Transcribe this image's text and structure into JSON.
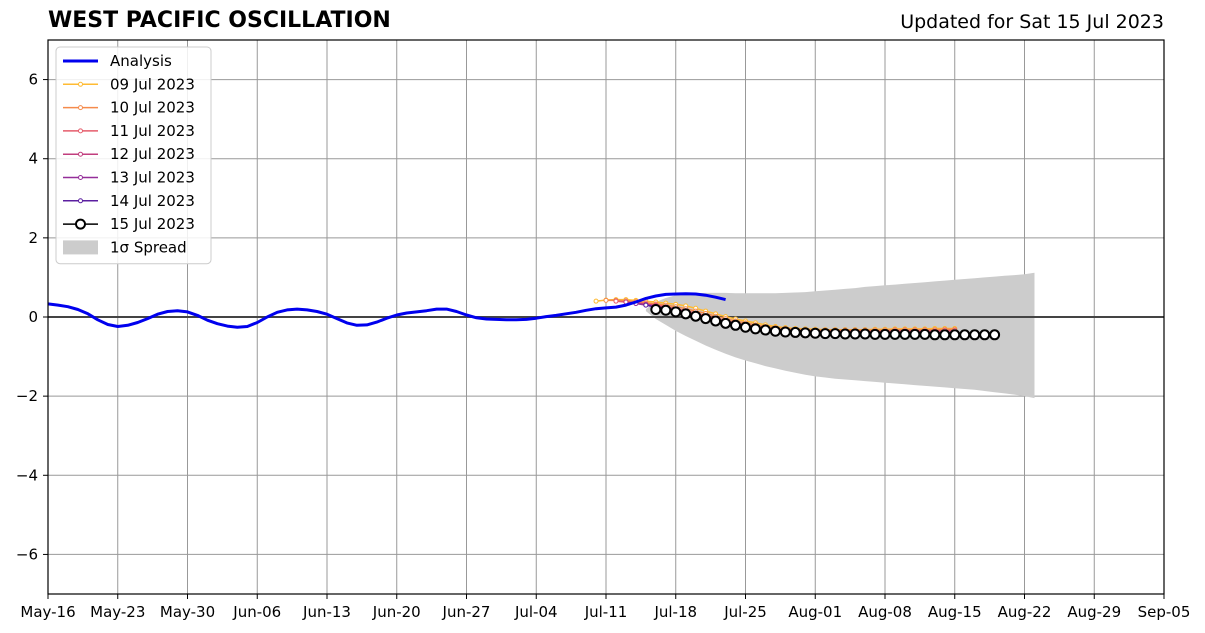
{
  "chart_data": {
    "type": "line",
    "title": "WEST PACIFIC OSCILLATION",
    "subtitle": "Updated for Sat 15 Jul 2023",
    "xlabel": "",
    "ylabel": "",
    "x_range": [
      "2023-05-16",
      "2023-09-05"
    ],
    "ylim": [
      -7,
      7
    ],
    "x_ticks": [
      "May-16",
      "May-23",
      "May-30",
      "Jun-06",
      "Jun-13",
      "Jun-20",
      "Jun-27",
      "Jul-04",
      "Jul-11",
      "Jul-18",
      "Jul-25",
      "Aug-01",
      "Aug-08",
      "Aug-15",
      "Aug-22",
      "Aug-29",
      "Sep-05"
    ],
    "y_ticks": [
      6,
      4,
      2,
      0,
      -2,
      -4,
      -6
    ],
    "y_tick_labels": [
      "6",
      "4",
      "2",
      "0",
      "−2",
      "−4",
      "−6"
    ],
    "grid": true,
    "legend_position": "top-left",
    "analysis": {
      "name": "Analysis",
      "color": "#0000ee",
      "start": "2023-05-16",
      "values": [
        0.33,
        0.3,
        0.26,
        0.19,
        0.08,
        -0.07,
        -0.19,
        -0.24,
        -0.21,
        -0.14,
        -0.04,
        0.07,
        0.14,
        0.16,
        0.13,
        0.04,
        -0.08,
        -0.17,
        -0.23,
        -0.26,
        -0.24,
        -0.14,
        0.0,
        0.12,
        0.18,
        0.2,
        0.18,
        0.14,
        0.07,
        -0.04,
        -0.15,
        -0.21,
        -0.2,
        -0.13,
        -0.03,
        0.05,
        0.1,
        0.13,
        0.16,
        0.2,
        0.2,
        0.14,
        0.05,
        -0.02,
        -0.05,
        -0.06,
        -0.07,
        -0.07,
        -0.06,
        -0.03,
        0.01,
        0.04,
        0.08,
        0.12,
        0.17,
        0.21,
        0.23,
        0.25,
        0.3,
        0.38,
        0.47,
        0.53,
        0.57,
        0.58,
        0.59,
        0.58,
        0.55,
        0.5,
        0.44
      ]
    },
    "series": [
      {
        "name": "09 Jul 2023",
        "color": "#ffbb33",
        "start": "2023-07-10",
        "values": [
          0.4,
          0.43,
          0.44,
          0.44,
          0.42,
          0.4,
          0.38,
          0.35,
          0.32,
          0.28,
          0.22,
          0.15,
          0.08,
          0.01,
          -0.05,
          -0.1,
          -0.15,
          -0.2,
          -0.24,
          -0.27,
          -0.29,
          -0.3,
          -0.31,
          -0.32,
          -0.32,
          -0.32,
          -0.32,
          -0.32,
          -0.31,
          -0.31,
          -0.3,
          -0.3,
          -0.3,
          -0.3,
          -0.29,
          -0.29,
          -0.29
        ]
      },
      {
        "name": "10 Jul 2023",
        "color": "#f58b4c",
        "start": "2023-07-11",
        "values": [
          0.42,
          0.42,
          0.41,
          0.39,
          0.36,
          0.33,
          0.3,
          0.26,
          0.21,
          0.15,
          0.09,
          0.02,
          -0.04,
          -0.1,
          -0.15,
          -0.2,
          -0.24,
          -0.27,
          -0.29,
          -0.31,
          -0.32,
          -0.33,
          -0.33,
          -0.33,
          -0.33,
          -0.33,
          -0.33,
          -0.33,
          -0.33,
          -0.32,
          -0.32,
          -0.32,
          -0.32,
          -0.32,
          -0.31,
          -0.31
        ]
      },
      {
        "name": "11 Jul 2023",
        "color": "#e55c6b",
        "start": "2023-07-12",
        "values": [
          0.4,
          0.38,
          0.36,
          0.33,
          0.3,
          0.26,
          0.21,
          0.16,
          0.1,
          0.03,
          -0.03,
          -0.09,
          -0.15,
          -0.2,
          -0.24,
          -0.28,
          -0.31,
          -0.33,
          -0.34,
          -0.35,
          -0.36,
          -0.36,
          -0.36,
          -0.36,
          -0.36,
          -0.36,
          -0.36,
          -0.36,
          -0.35,
          -0.35,
          -0.35,
          -0.35,
          -0.35,
          -0.34,
          -0.34
        ]
      },
      {
        "name": "12 Jul 2023",
        "color": "#c13e7e",
        "start": "2023-07-13",
        "values": [
          0.38,
          0.35,
          0.32,
          0.28,
          0.24,
          0.19,
          0.13,
          0.07,
          0.0,
          -0.06,
          -0.12,
          -0.18,
          -0.23,
          -0.27,
          -0.31,
          -0.34,
          -0.36,
          -0.38,
          -0.39,
          -0.4,
          -0.4,
          -0.4,
          -0.4,
          -0.4,
          -0.4,
          -0.4,
          -0.4,
          -0.39,
          -0.39,
          -0.39,
          -0.39,
          -0.39,
          -0.39,
          -0.38
        ]
      },
      {
        "name": "13 Jul 2023",
        "color": "#952e99",
        "start": "2023-07-14",
        "values": [
          0.34,
          0.3,
          0.26,
          0.21,
          0.16,
          0.1,
          0.04,
          -0.03,
          -0.09,
          -0.15,
          -0.21,
          -0.26,
          -0.3,
          -0.34,
          -0.37,
          -0.39,
          -0.41,
          -0.42,
          -0.43,
          -0.43,
          -0.43,
          -0.43,
          -0.43,
          -0.43,
          -0.43,
          -0.43,
          -0.43,
          -0.43,
          -0.42,
          -0.42,
          -0.42,
          -0.42,
          -0.42
        ]
      },
      {
        "name": "14 Jul 2023",
        "color": "#5b1fa0",
        "start": "2023-07-15",
        "values": [
          0.3,
          0.25,
          0.2,
          0.15,
          0.09,
          0.03,
          -0.04,
          -0.1,
          -0.16,
          -0.22,
          -0.27,
          -0.31,
          -0.35,
          -0.38,
          -0.4,
          -0.42,
          -0.43,
          -0.44,
          -0.44,
          -0.44,
          -0.44,
          -0.44,
          -0.44,
          -0.44,
          -0.44,
          -0.44,
          -0.44,
          -0.44,
          -0.44,
          -0.44,
          -0.44,
          -0.44
        ]
      },
      {
        "name": "15 Jul 2023",
        "color": "#000000",
        "start": "2023-07-16",
        "values": [
          0.19,
          0.17,
          0.13,
          0.08,
          0.02,
          -0.04,
          -0.1,
          -0.16,
          -0.21,
          -0.26,
          -0.3,
          -0.33,
          -0.36,
          -0.38,
          -0.39,
          -0.4,
          -0.41,
          -0.42,
          -0.42,
          -0.43,
          -0.43,
          -0.43,
          -0.44,
          -0.44,
          -0.44,
          -0.44,
          -0.44,
          -0.44,
          -0.45,
          -0.45,
          -0.45,
          -0.45,
          -0.45,
          -0.45,
          -0.45
        ]
      }
    ],
    "spread": {
      "name": "1σ Spread",
      "color": "#cccccc",
      "start": "2023-07-15",
      "upper": [
        0.2,
        0.38,
        0.48,
        0.55,
        0.58,
        0.6,
        0.61,
        0.61,
        0.61,
        0.6,
        0.6,
        0.6,
        0.6,
        0.6,
        0.61,
        0.62,
        0.63,
        0.65,
        0.67,
        0.69,
        0.71,
        0.73,
        0.76,
        0.78,
        0.8,
        0.82,
        0.84,
        0.86,
        0.88,
        0.9,
        0.92,
        0.94,
        0.96,
        0.98,
        1.0,
        1.02,
        1.04,
        1.06,
        1.08,
        1.12
      ],
      "lower": [
        0.15,
        -0.05,
        -0.2,
        -0.35,
        -0.48,
        -0.6,
        -0.72,
        -0.83,
        -0.93,
        -1.02,
        -1.1,
        -1.17,
        -1.24,
        -1.3,
        -1.36,
        -1.41,
        -1.46,
        -1.5,
        -1.53,
        -1.56,
        -1.58,
        -1.6,
        -1.62,
        -1.64,
        -1.66,
        -1.68,
        -1.7,
        -1.72,
        -1.74,
        -1.76,
        -1.78,
        -1.8,
        -1.82,
        -1.84,
        -1.87,
        -1.9,
        -1.93,
        -1.96,
        -2.0,
        -2.05
      ]
    }
  }
}
